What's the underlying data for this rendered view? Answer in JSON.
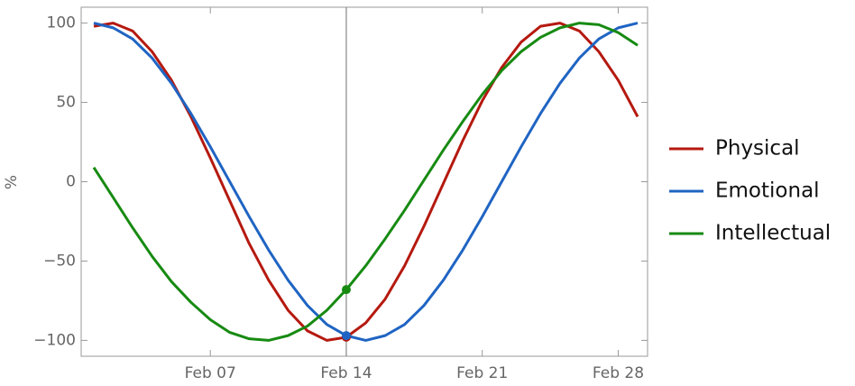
{
  "chart_data": {
    "type": "line",
    "x": [
      "Feb 01",
      "Feb 02",
      "Feb 03",
      "Feb 04",
      "Feb 05",
      "Feb 06",
      "Feb 07",
      "Feb 08",
      "Feb 09",
      "Feb 10",
      "Feb 11",
      "Feb 12",
      "Feb 13",
      "Feb 14",
      "Feb 15",
      "Feb 16",
      "Feb 17",
      "Feb 18",
      "Feb 19",
      "Feb 20",
      "Feb 21",
      "Feb 22",
      "Feb 23",
      "Feb 24",
      "Feb 25",
      "Feb 26",
      "Feb 27",
      "Feb 28",
      "Feb 29"
    ],
    "xticks": [
      "Feb 07",
      "Feb 14",
      "Feb 21",
      "Feb 28"
    ],
    "y_label": "%",
    "ylim": [
      -110,
      110
    ],
    "yticks": [
      {
        "value": -100,
        "label": "−100"
      },
      {
        "value": -50,
        "label": "−50"
      },
      0,
      50,
      100
    ],
    "grid": false,
    "cursor_x": "Feb 14",
    "series": [
      {
        "name": "Physical",
        "color": "#b5190f",
        "values": [
          98,
          100,
          95,
          82,
          64,
          41,
          15,
          -12,
          -39,
          -62,
          -81,
          -94,
          -100,
          -98,
          -89,
          -74,
          -53,
          -28,
          -1,
          26,
          51,
          72,
          88,
          98,
          100,
          95,
          82,
          64,
          41
        ]
      },
      {
        "name": "Emotional",
        "color": "#1f64c3",
        "values": [
          100,
          97,
          90,
          78,
          62,
          43,
          22,
          0,
          -22,
          -43,
          -62,
          -78,
          -90,
          -97,
          -100,
          -97,
          -90,
          -78,
          -62,
          -43,
          -22,
          0,
          22,
          43,
          62,
          78,
          90,
          97,
          100
        ]
      },
      {
        "name": "Intellectual",
        "color": "#178a12",
        "values": [
          9,
          -10,
          -29,
          -47,
          -63,
          -76,
          -87,
          -95,
          -99,
          -100,
          -97,
          -91,
          -81,
          -68,
          -53,
          -36,
          -18,
          1,
          20,
          38,
          55,
          70,
          82,
          91,
          97,
          100,
          99,
          94,
          86
        ]
      }
    ]
  }
}
